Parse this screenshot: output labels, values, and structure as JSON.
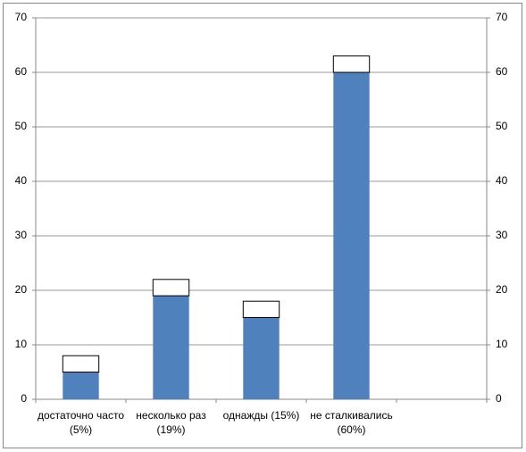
{
  "chart_data": {
    "type": "bar",
    "stacked": true,
    "categories": [
      "достаточно часто (5%)",
      "несколько раз (19%)",
      "однажды (15%)",
      "не сталкивались (60%)",
      null
    ],
    "series": [
      {
        "color": "#4f81bd",
        "values": [
          5,
          19,
          15,
          60,
          null
        ]
      },
      {
        "color": "#ffffff",
        "values": [
          3,
          3,
          3,
          3,
          null
        ]
      }
    ],
    "ylim": [
      0,
      70
    ],
    "yticks": [
      0,
      10,
      20,
      30,
      40,
      50,
      60,
      70
    ],
    "y2lim": [
      0,
      70
    ],
    "y2ticks": [
      0,
      10,
      20,
      30,
      40,
      50,
      60,
      70
    ],
    "grid": true
  }
}
